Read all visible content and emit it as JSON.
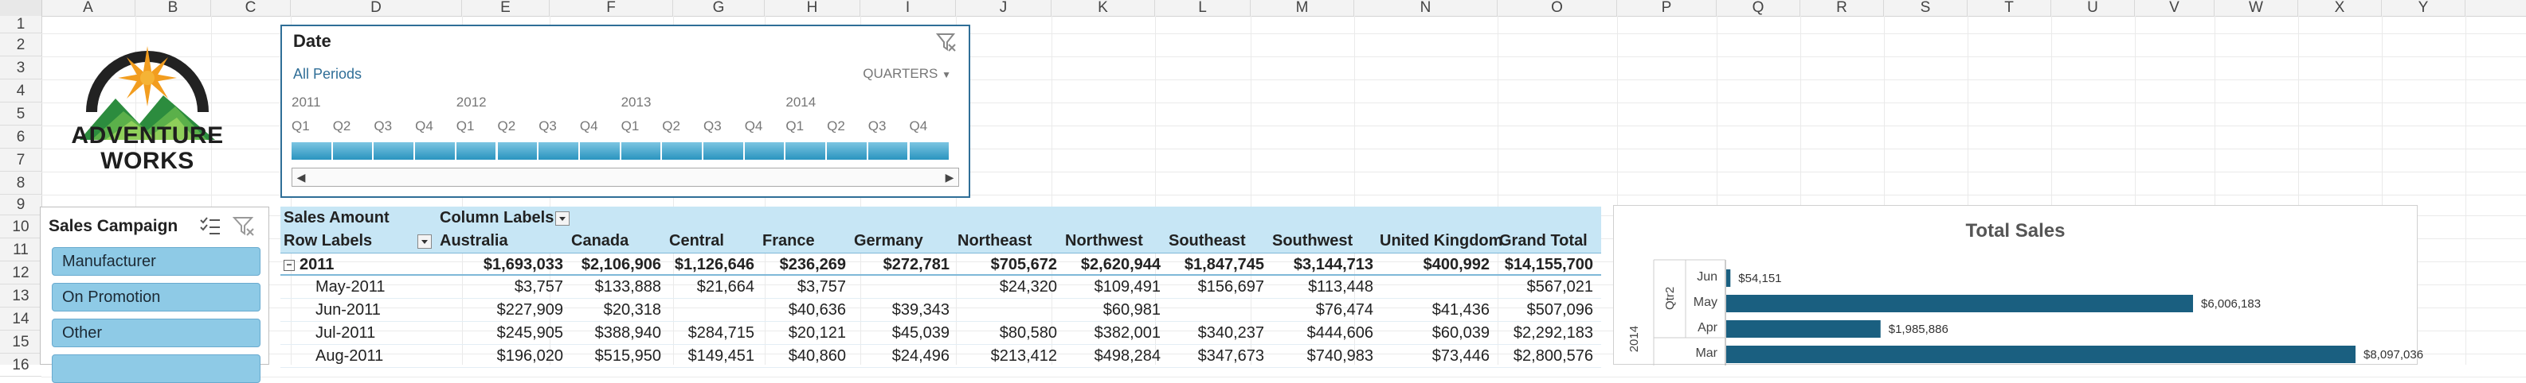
{
  "columns": [
    "A",
    "B",
    "C",
    "D",
    "E",
    "F",
    "G",
    "H",
    "I",
    "J",
    "K",
    "L",
    "M",
    "N",
    "O",
    "P",
    "Q",
    "R",
    "S",
    "T",
    "U",
    "V",
    "W",
    "X",
    "Y"
  ],
  "rows": [
    "1",
    "2",
    "3",
    "4",
    "5",
    "6",
    "7",
    "8",
    "9",
    "10",
    "11",
    "12",
    "13",
    "14",
    "15",
    "16"
  ],
  "logo": {
    "line1": "ADVENTURE",
    "line2": "WORKS"
  },
  "timeline": {
    "title": "Date",
    "period": "All Periods",
    "level": "QUARTERS",
    "years": [
      "2011",
      "2012",
      "2013",
      "2014"
    ],
    "quarters": [
      "Q1",
      "Q2",
      "Q3",
      "Q4",
      "Q1",
      "Q2",
      "Q3",
      "Q4",
      "Q1",
      "Q2",
      "Q3",
      "Q4",
      "Q1",
      "Q2",
      "Q3",
      "Q4"
    ]
  },
  "campaign": {
    "title": "Sales Campaign",
    "items": [
      "Manufacturer",
      "On Promotion",
      "Other"
    ]
  },
  "pivot": {
    "values_label": "Sales Amount",
    "column_labels": "Column Labels",
    "row_labels": "Row Labels",
    "headers": [
      "Australia",
      "Canada",
      "Central",
      "France",
      "Germany",
      "Northeast",
      "Northwest",
      "Southeast",
      "Southwest",
      "United Kingdom",
      "Grand Total"
    ],
    "rows": [
      {
        "label": "2011",
        "values": [
          "$1,693,033",
          "$2,106,906",
          "$1,126,646",
          "$236,269",
          "$272,781",
          "$705,672",
          "$2,620,944",
          "$1,847,745",
          "$3,144,713",
          "$400,992",
          "$14,155,700"
        ]
      },
      {
        "label": "May-2011",
        "values": [
          "$3,757",
          "$133,888",
          "$21,664",
          "$3,757",
          "",
          "$24,320",
          "$109,491",
          "$156,697",
          "$113,448",
          "",
          "$567,021"
        ]
      },
      {
        "label": "Jun-2011",
        "values": [
          "$227,909",
          "$20,318",
          "",
          "$40,636",
          "$39,343",
          "",
          "$60,981",
          "",
          "$76,474",
          "$41,436",
          "$507,096"
        ]
      },
      {
        "label": "Jul-2011",
        "values": [
          "$245,905",
          "$388,940",
          "$284,715",
          "$20,121",
          "$45,039",
          "$80,580",
          "$382,001",
          "$340,237",
          "$444,606",
          "$60,039",
          "$2,292,183"
        ]
      },
      {
        "label": "Aug-2011",
        "values": [
          "$196,020",
          "$515,950",
          "$149,451",
          "$40,860",
          "$24,496",
          "$213,412",
          "$498,284",
          "$347,673",
          "$740,983",
          "$73,446",
          "$2,800,576"
        ]
      }
    ]
  },
  "chart_data": {
    "type": "bar",
    "title": "Total Sales",
    "group_labels": {
      "year": "2014",
      "quarter": "Qtr2"
    },
    "categories": [
      "Jun",
      "May",
      "Apr",
      "Mar"
    ],
    "values": [
      54151,
      6006183,
      1985886,
      8097036
    ],
    "value_labels": [
      "$54,151",
      "$6,006,183",
      "$1,985,886",
      "$8,097,036"
    ],
    "orientation": "horizontal"
  }
}
